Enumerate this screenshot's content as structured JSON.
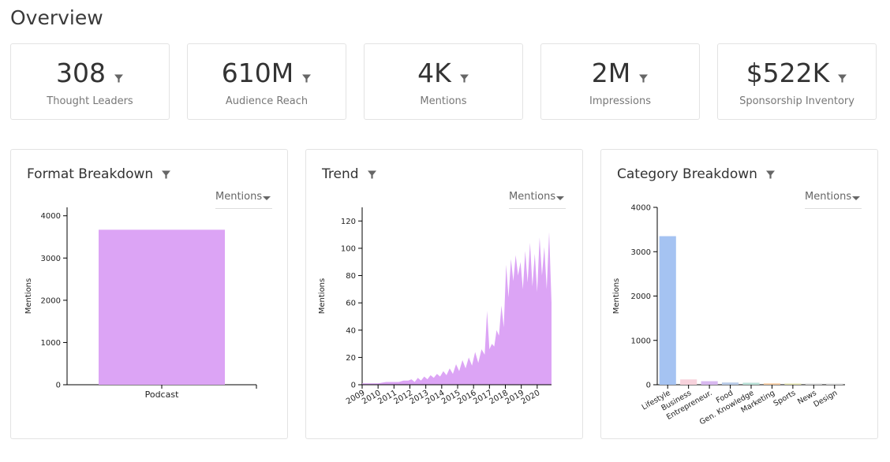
{
  "page": {
    "title": "Overview"
  },
  "kpis": [
    {
      "value": "308",
      "label": "Thought Leaders"
    },
    {
      "value": "610M",
      "label": "Audience Reach"
    },
    {
      "value": "4K",
      "label": "Mentions"
    },
    {
      "value": "2M",
      "label": "Impressions"
    },
    {
      "value": "$522K",
      "label": "Sponsorship Inventory"
    }
  ],
  "cards": {
    "format": {
      "title": "Format Breakdown",
      "metric": "Mentions"
    },
    "trend": {
      "title": "Trend",
      "metric": "Mentions"
    },
    "category": {
      "title": "Category Breakdown",
      "metric": "Mentions"
    }
  },
  "icons": {
    "filter": "filter-icon",
    "dropdown": "caret-down-icon"
  },
  "colors": {
    "accent_purple": "#dca4f5",
    "lifestyle_blue": "#a5c3f2"
  },
  "chart_data": [
    {
      "type": "bar",
      "categories": [
        "Podcast"
      ],
      "values": [
        3670
      ],
      "ylabel": "Mentions",
      "ylim": [
        0,
        4200
      ],
      "yticks": [
        0,
        1000,
        2000,
        3000,
        4000
      ],
      "color": "#dca4f5"
    },
    {
      "type": "area",
      "ylabel": "Mentions",
      "ylim": [
        0,
        130
      ],
      "yticks": [
        0,
        20,
        40,
        60,
        80,
        100,
        120
      ],
      "xlim": [
        2009,
        2020.9
      ],
      "xticks": [
        "2009",
        "2010",
        "2011",
        "2012",
        "2013",
        "2014",
        "2015",
        "2016",
        "2017",
        "2018",
        "2019",
        "2020"
      ],
      "color": "#dca4f5",
      "x": [
        2009,
        2009.5,
        2010,
        2010.5,
        2011,
        2011.3,
        2011.6,
        2011.9,
        2012.1,
        2012.3,
        2012.5,
        2012.7,
        2012.9,
        2013.1,
        2013.3,
        2013.5,
        2013.7,
        2013.9,
        2014.1,
        2014.3,
        2014.5,
        2014.7,
        2014.9,
        2015.1,
        2015.3,
        2015.5,
        2015.7,
        2015.9,
        2016.1,
        2016.3,
        2016.5,
        2016.7,
        2016.85,
        2017,
        2017.15,
        2017.3,
        2017.45,
        2017.6,
        2017.75,
        2017.9,
        2018.05,
        2018.2,
        2018.35,
        2018.5,
        2018.65,
        2018.8,
        2018.95,
        2019.1,
        2019.25,
        2019.4,
        2019.55,
        2019.7,
        2019.85,
        2020,
        2020.15,
        2020.3,
        2020.45,
        2020.6,
        2020.75,
        2020.9
      ],
      "y": [
        1,
        1,
        1,
        2,
        2,
        2,
        3,
        3,
        4,
        2,
        5,
        3,
        6,
        4,
        7,
        5,
        8,
        6,
        10,
        7,
        12,
        8,
        15,
        10,
        18,
        12,
        20,
        14,
        24,
        16,
        26,
        22,
        54,
        26,
        30,
        28,
        40,
        36,
        58,
        42,
        88,
        64,
        92,
        76,
        95,
        80,
        90,
        70,
        98,
        75,
        104,
        72,
        96,
        68,
        108,
        80,
        101,
        70,
        112,
        60
      ]
    },
    {
      "type": "bar",
      "categories": [
        "Lifestyle",
        "Business",
        "Entrepreneur.",
        "Food",
        "Gen. Knowledge",
        "Marketing",
        "Sports",
        "News",
        "Design"
      ],
      "values": [
        3350,
        120,
        80,
        50,
        45,
        30,
        20,
        15,
        10
      ],
      "colors": [
        "#a5c3f2",
        "#f7d2dc",
        "#d8b8f0",
        "#b8cbe8",
        "#b8e0d6",
        "#f5c89a",
        "#e0dfa8",
        "#d4d4d4",
        "#dadada"
      ],
      "ylabel": "Mentions",
      "ylim": [
        0,
        4000
      ],
      "yticks": [
        0,
        1000,
        2000,
        3000,
        4000
      ]
    }
  ]
}
